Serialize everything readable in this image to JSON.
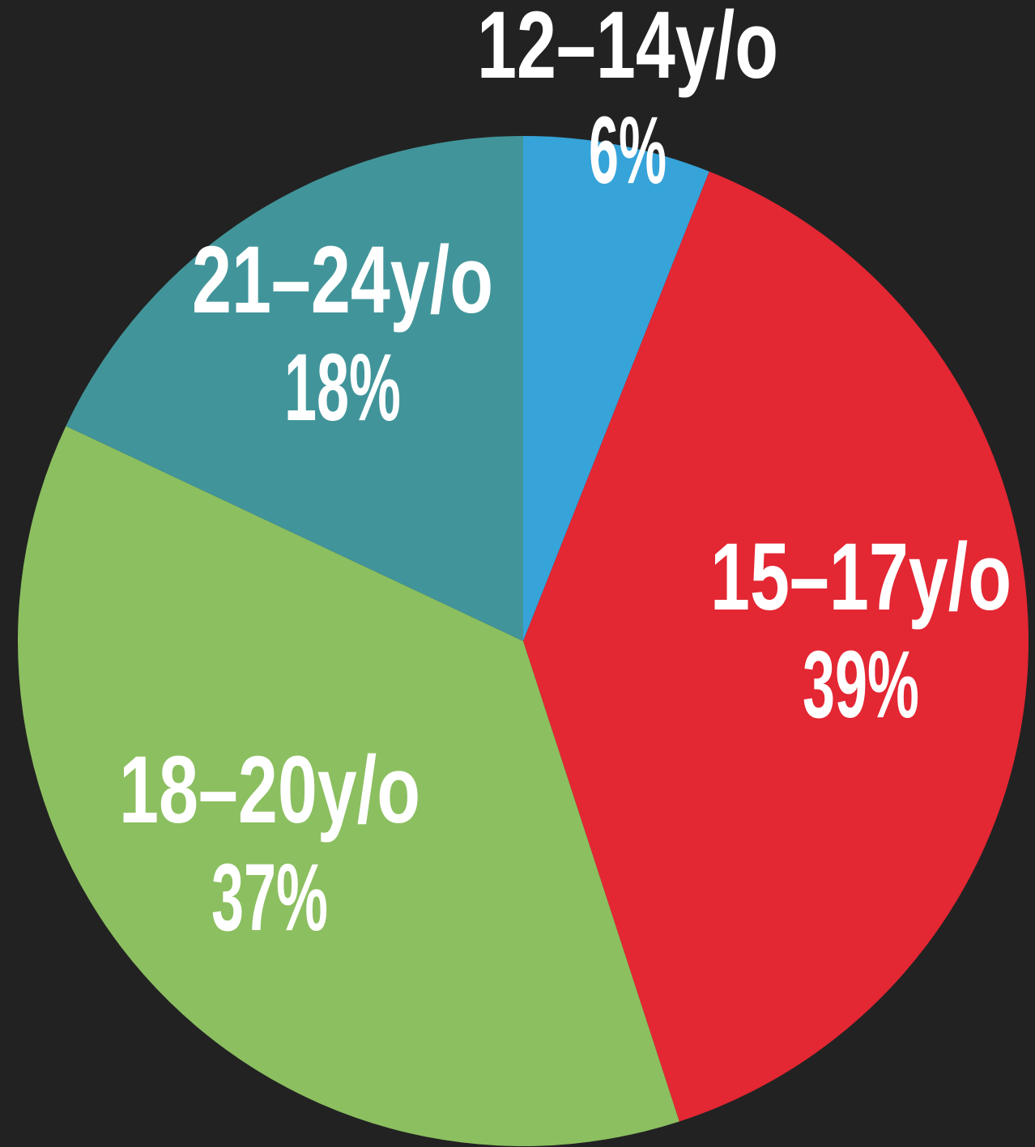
{
  "chart_data": {
    "type": "pie",
    "categories": [
      "12–14y/o",
      "15–17y/o",
      "18–20y/o",
      "21–24y/o"
    ],
    "values": [
      6,
      39,
      37,
      18
    ],
    "value_labels": [
      "6%",
      "39%",
      "37%",
      "18%"
    ],
    "colors": [
      "#36a3d9",
      "#e32733",
      "#8cbf60",
      "#41959a"
    ]
  }
}
